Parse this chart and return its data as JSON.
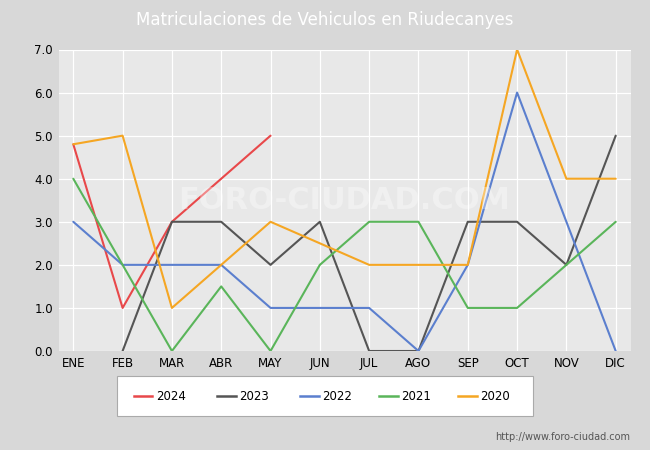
{
  "title": "Matriculaciones de Vehiculos en Riudecanyes",
  "months": [
    "ENE",
    "FEB",
    "MAR",
    "ABR",
    "MAY",
    "JUN",
    "JUL",
    "AGO",
    "SEP",
    "OCT",
    "NOV",
    "DIC"
  ],
  "series": {
    "2024": [
      4.8,
      1.0,
      3.0,
      4.0,
      5.0,
      null,
      null,
      null,
      null,
      null,
      null,
      null
    ],
    "2023": [
      null,
      0.0,
      3.0,
      3.0,
      2.0,
      3.0,
      0.0,
      0.0,
      3.0,
      3.0,
      2.0,
      5.0
    ],
    "2022": [
      3.0,
      2.0,
      2.0,
      2.0,
      1.0,
      1.0,
      1.0,
      0.0,
      2.0,
      6.0,
      3.0,
      0.0
    ],
    "2021": [
      4.0,
      2.0,
      0.0,
      1.5,
      0.0,
      2.0,
      3.0,
      3.0,
      1.0,
      1.0,
      2.0,
      3.0
    ],
    "2020": [
      4.8,
      5.0,
      1.0,
      2.0,
      3.0,
      2.5,
      2.0,
      2.0,
      2.0,
      7.0,
      4.0,
      4.0
    ]
  },
  "colors": {
    "2024": "#e8484a",
    "2023": "#555555",
    "2022": "#5b7fce",
    "2021": "#5ab55a",
    "2020": "#f5a623"
  },
  "ylim": [
    0.0,
    7.0
  ],
  "yticks": [
    0.0,
    1.0,
    2.0,
    3.0,
    4.0,
    5.0,
    6.0,
    7.0
  ],
  "background_color": "#d8d8d8",
  "plot_background": "#e8e8e8",
  "header_color": "#4d8cc8",
  "url_text": "http://www.foro-ciudad.com",
  "watermark": "FORO-CIUDAD.COM"
}
